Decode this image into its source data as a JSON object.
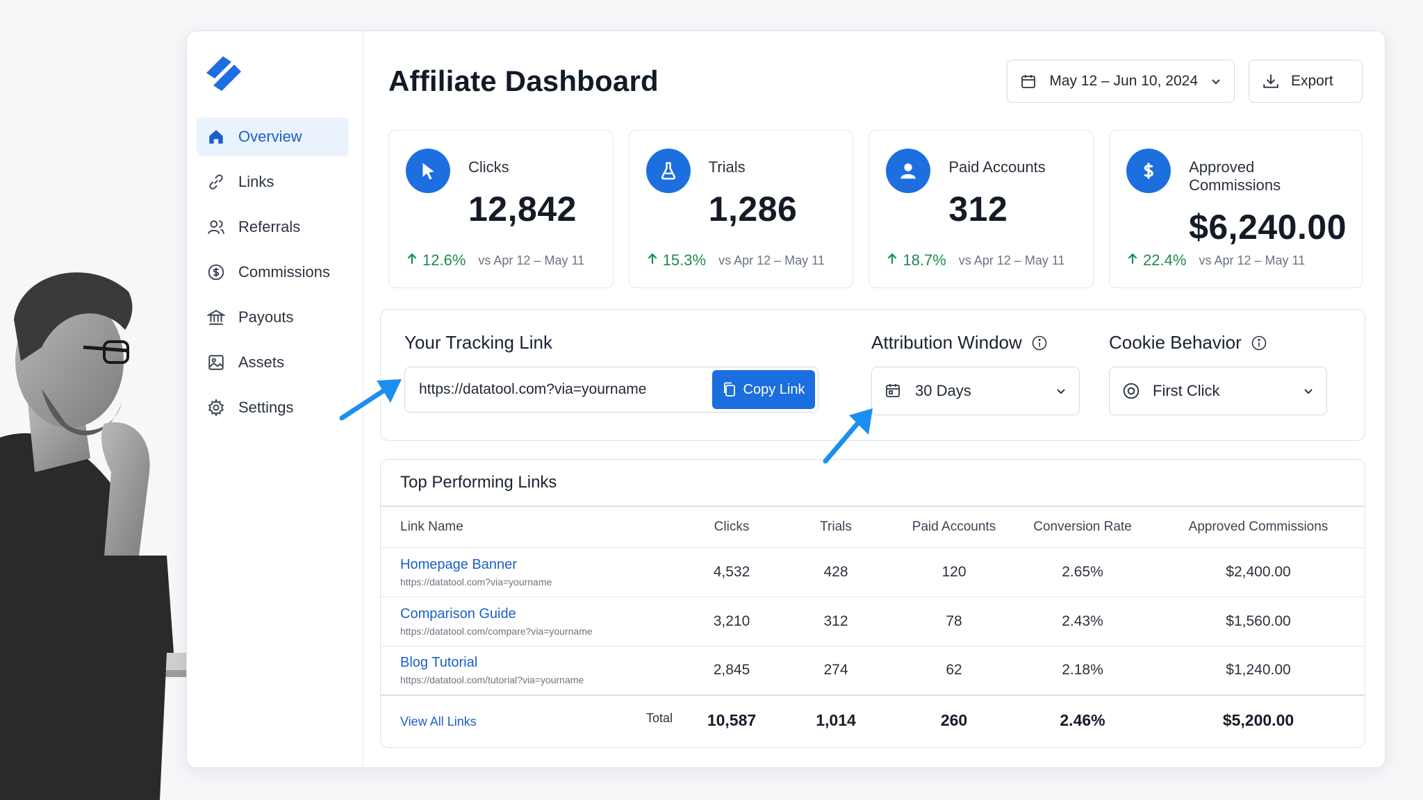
{
  "sidebar": {
    "items": [
      {
        "label": "Overview",
        "icon": "home-icon",
        "active": true
      },
      {
        "label": "Links",
        "icon": "link-icon"
      },
      {
        "label": "Referrals",
        "icon": "users-icon"
      },
      {
        "label": "Commissions",
        "icon": "dollar-circle-icon"
      },
      {
        "label": "Payouts",
        "icon": "bank-icon"
      },
      {
        "label": "Assets",
        "icon": "image-icon"
      },
      {
        "label": "Settings",
        "icon": "gear-icon"
      }
    ]
  },
  "header": {
    "title": "Affiliate Dashboard",
    "date_range": "May 12 – Jun 10, 2024",
    "export_label": "Export"
  },
  "cards": [
    {
      "label": "Clicks",
      "value": "12,842",
      "delta": "12.6%",
      "compare": "vs Apr 12 – May 11",
      "icon": "cursor-icon"
    },
    {
      "label": "Trials",
      "value": "1,286",
      "delta": "15.3%",
      "compare": "vs Apr 12 – May 11",
      "icon": "flask-icon"
    },
    {
      "label": "Paid Accounts",
      "value": "312",
      "delta": "18.7%",
      "compare": "vs Apr 12 – May 11",
      "icon": "user-icon"
    },
    {
      "label": "Approved Commissions",
      "value": "$6,240.00",
      "delta": "22.4%",
      "compare": "vs Apr 12 – May 11",
      "icon": "dollar-icon"
    }
  ],
  "tracking": {
    "label": "Your Tracking Link",
    "url": "https://datatool.com?via=yourname",
    "copy_label": "Copy Link",
    "attribution_label": "Attribution Window",
    "attribution_value": "30 Days",
    "cookie_label": "Cookie Behavior",
    "cookie_value": "First Click"
  },
  "table": {
    "title": "Top Performing Links",
    "columns": [
      "Link Name",
      "Clicks",
      "Trials",
      "Paid Accounts",
      "Conversion Rate",
      "Approved Commissions"
    ],
    "rows": [
      {
        "name": "Homepage Banner",
        "url": "https://datatool.com?via=yourname",
        "clicks": "4,532",
        "trials": "428",
        "paid": "120",
        "rate": "2.65%",
        "commissions": "$2,400.00"
      },
      {
        "name": "Comparison Guide",
        "url": "https://datatool.com/compare?via=yourname",
        "clicks": "3,210",
        "trials": "312",
        "paid": "78",
        "rate": "2.43%",
        "commissions": "$1,560.00"
      },
      {
        "name": "Blog Tutorial",
        "url": "https://datatool.com/tutorial?via=yourname",
        "clicks": "2,845",
        "trials": "274",
        "paid": "62",
        "rate": "2.18%",
        "commissions": "$1,240.00"
      }
    ],
    "footer": {
      "view_all": "View All Links",
      "total_label": "Total",
      "clicks": "10,587",
      "trials": "1,014",
      "paid": "260",
      "rate": "2.46%",
      "commissions": "$5,200.00"
    }
  },
  "colors": {
    "accent": "#1b6ee0",
    "positive": "#1f8a4c",
    "arrow": "#1a8ff0"
  }
}
